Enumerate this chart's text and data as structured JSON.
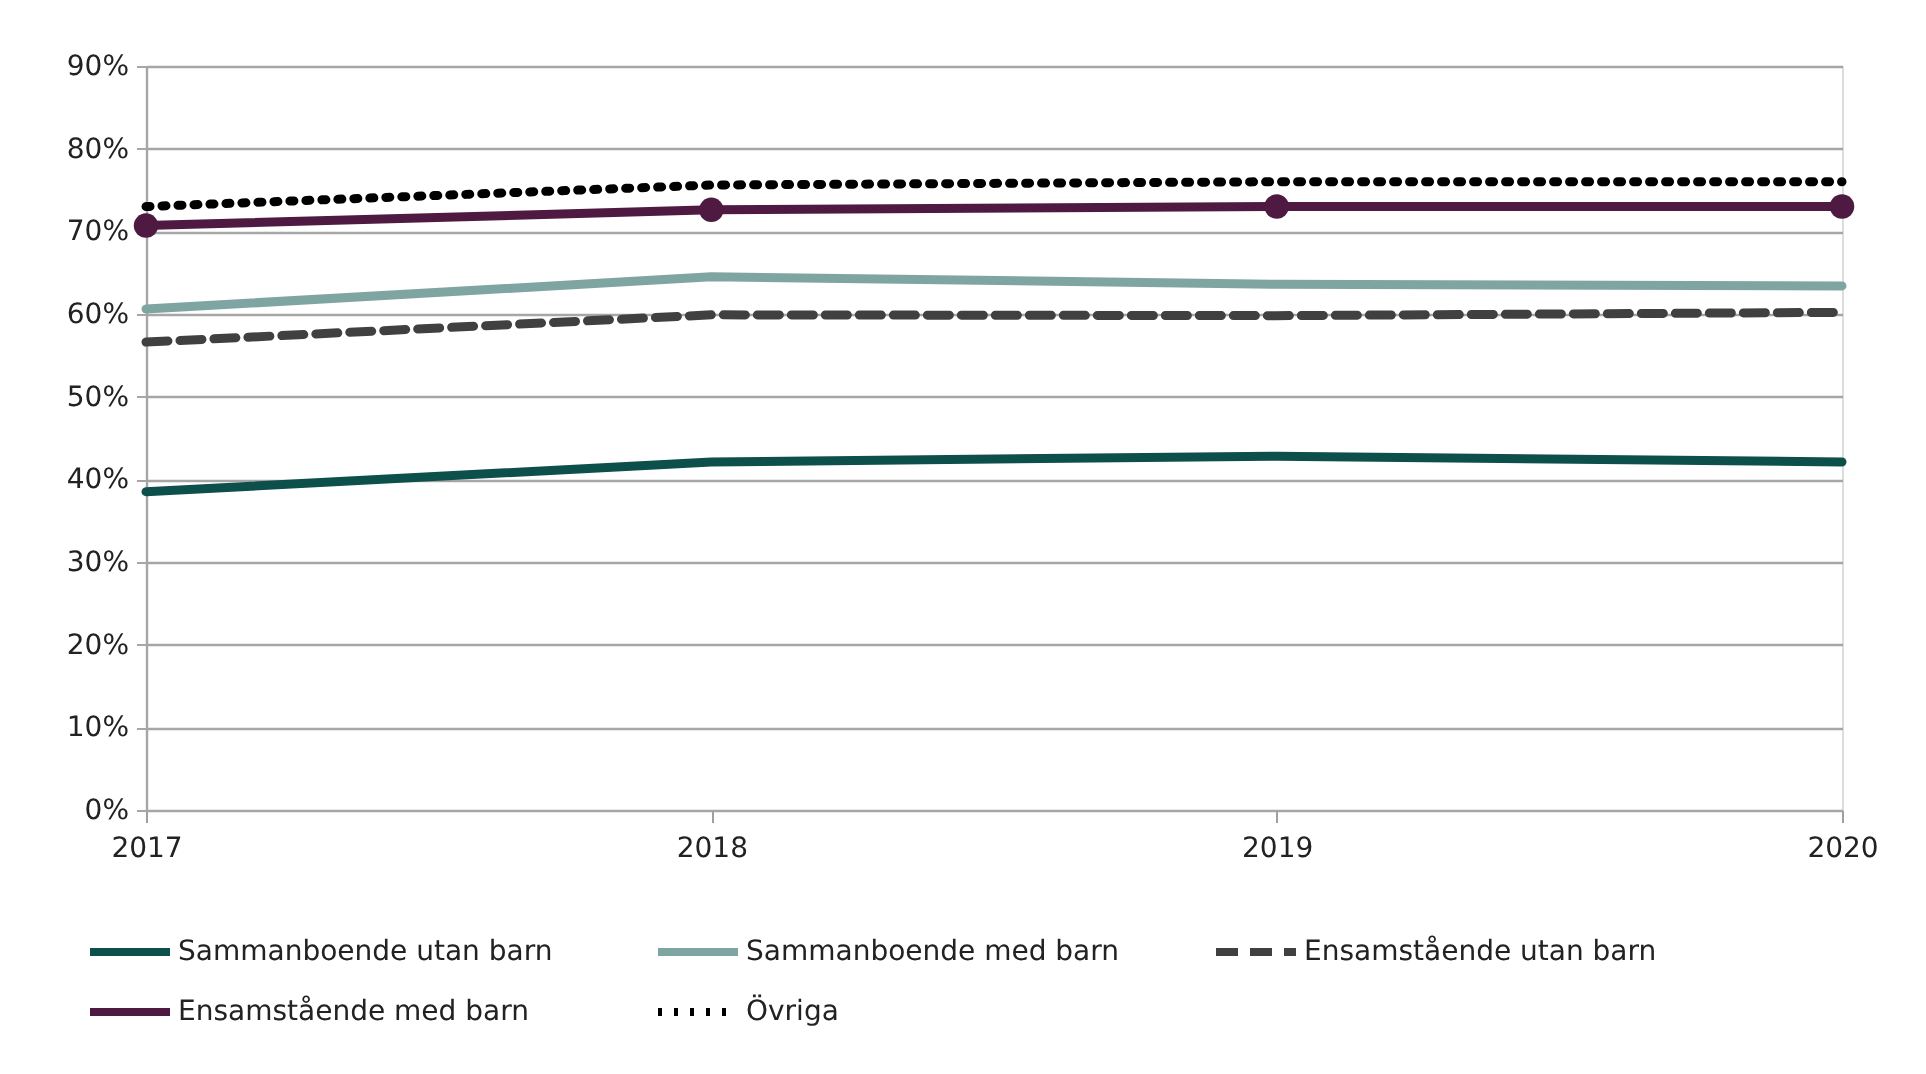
{
  "chart_data": {
    "type": "line",
    "categories": [
      "2017",
      "2018",
      "2019",
      "2020"
    ],
    "series": [
      {
        "name": "Sammanboende  utan barn",
        "color": "#0d4f4a",
        "values": [
          38.5,
          42.1,
          42.8,
          42.1
        ],
        "line_style": "solid",
        "marker": "none"
      },
      {
        "name": "Sammanboende med barn",
        "color": "#7fa5a3",
        "values": [
          60.6,
          64.5,
          63.6,
          63.4
        ],
        "line_style": "solid",
        "marker": "none"
      },
      {
        "name": "Ensamstående utan barn",
        "color": "#404040",
        "values": [
          56.6,
          59.9,
          59.8,
          60.2
        ],
        "line_style": "dashed",
        "marker": "none"
      },
      {
        "name": "Ensamstående med barn",
        "color": "#4e1a42",
        "values": [
          70.7,
          72.6,
          73.0,
          73.0
        ],
        "line_style": "solid",
        "marker": "circle"
      },
      {
        "name": "Övriga",
        "color": "#000000",
        "values": [
          73.0,
          75.6,
          76.0,
          76.0
        ],
        "line_style": "dotted",
        "marker": "none"
      }
    ],
    "ylim": [
      0,
      90
    ],
    "yticks": [
      {
        "value": 0,
        "label": "0%"
      },
      {
        "value": 10,
        "label": "10%"
      },
      {
        "value": 20,
        "label": "20%"
      },
      {
        "value": 30,
        "label": "30%"
      },
      {
        "value": 40,
        "label": "40%"
      },
      {
        "value": 50,
        "label": "50%"
      },
      {
        "value": 60,
        "label": "60%"
      },
      {
        "value": 70,
        "label": "70%"
      },
      {
        "value": 80,
        "label": "80%"
      },
      {
        "value": 90,
        "label": "90%"
      }
    ],
    "grid": "y",
    "legend": "bottom"
  }
}
